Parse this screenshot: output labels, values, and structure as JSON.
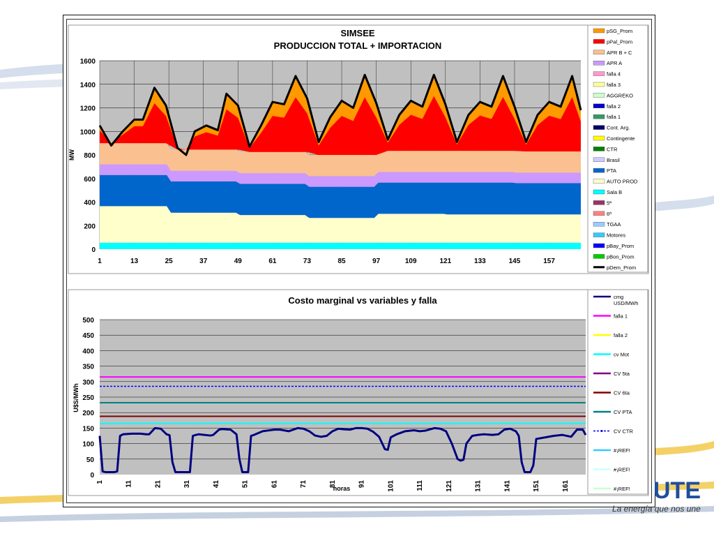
{
  "brand": {
    "tagline": "La energía que nos une"
  },
  "charts": {
    "production": {
      "title_line1": "SIMSEE",
      "title_line2": "PRODUCCION TOTAL + IMPORTACION",
      "ylabel": "MW",
      "xlabel": "",
      "y_ticks": [
        "0",
        "200",
        "400",
        "600",
        "800",
        "1000",
        "1200",
        "1400",
        "1600"
      ],
      "x_ticks": [
        "1",
        "13",
        "25",
        "37",
        "49",
        "61",
        "73",
        "85",
        "97",
        "109",
        "121",
        "133",
        "145",
        "157"
      ],
      "legend": [
        {
          "label": "pSG_Prom",
          "color": "#ff9900"
        },
        {
          "label": "pPal_Prom",
          "color": "#ff0000"
        },
        {
          "label": "APR B + C",
          "color": "#fac090"
        },
        {
          "label": "APR A",
          "color": "#cc99ff"
        },
        {
          "label": "falla 4",
          "color": "#ff99cc"
        },
        {
          "label": "falla 3",
          "color": "#ffff99"
        },
        {
          "label": "AGGREKO",
          "color": "#ccffcc"
        },
        {
          "label": "falla 2",
          "color": "#0000cc"
        },
        {
          "label": "falla 1",
          "color": "#339966"
        },
        {
          "label": "Cont. Arg.",
          "color": "#000066"
        },
        {
          "label": "Contingente",
          "color": "#ffff00"
        },
        {
          "label": "CTR",
          "color": "#008000"
        },
        {
          "label": "Brasil",
          "color": "#ccccff"
        },
        {
          "label": "PTA",
          "color": "#0066cc"
        },
        {
          "label": "AUTO PROD",
          "color": "#ffffcc"
        },
        {
          "label": "Sala B",
          "color": "#00ffff"
        },
        {
          "label": "5ª",
          "color": "#993366"
        },
        {
          "label": "6ª",
          "color": "#ff8080"
        },
        {
          "label": "TGAA",
          "color": "#99ccff"
        },
        {
          "label": "Motores",
          "color": "#33ccff"
        },
        {
          "label": "pBay_Prom",
          "color": "#0000ff"
        },
        {
          "label": "pBon_Prom",
          "color": "#00cc00"
        },
        {
          "label": "pDem_Prom",
          "color": "#000000"
        }
      ]
    },
    "marginal": {
      "title": "Costo marginal vs variables y falla",
      "ylabel": "U$S/MWh",
      "xlabel": "horas",
      "y_ticks": [
        "0",
        "50",
        "100",
        "150",
        "200",
        "250",
        "300",
        "350",
        "400",
        "450",
        "500"
      ],
      "x_ticks": [
        "1",
        "11",
        "21",
        "31",
        "41",
        "51",
        "61",
        "71",
        "81",
        "91",
        "101",
        "111",
        "121",
        "131",
        "141",
        "151",
        "161"
      ],
      "legend": [
        {
          "label": "cmg USD/MWh",
          "color": "#000080",
          "style": "line"
        },
        {
          "label": "falla 1",
          "color": "#ff00ff",
          "style": "line"
        },
        {
          "label": "falla 2",
          "color": "#ffff00",
          "style": "line"
        },
        {
          "label": "cv Mot",
          "color": "#00ffff",
          "style": "line"
        },
        {
          "label": "CV 5ta",
          "color": "#800080",
          "style": "line"
        },
        {
          "label": "CV 6ta",
          "color": "#800000",
          "style": "line"
        },
        {
          "label": "CV PTA",
          "color": "#008080",
          "style": "line"
        },
        {
          "label": "CV CTR",
          "color": "#0000ff",
          "style": "dash-marker"
        },
        {
          "label": "#¡REF!",
          "color": "#33ccff",
          "style": "line"
        },
        {
          "label": "#¡REF!",
          "color": "#ccffff",
          "style": "line"
        },
        {
          "label": "#¡REF!",
          "color": "#ccffcc",
          "style": "line"
        }
      ]
    }
  },
  "chart_data": [
    {
      "type": "area",
      "title": "SIMSEE PRODUCCION TOTAL + IMPORTACION",
      "ylabel": "MW",
      "ylim": [
        0,
        1600
      ],
      "xlim": [
        1,
        168
      ],
      "grid": true,
      "legend_position": "right",
      "x_breaks": [
        1,
        25,
        49,
        73,
        97,
        121,
        145,
        168
      ],
      "stacked_series": [
        {
          "name": "Sala B",
          "color": "#00ffff",
          "values": [
            55,
            55,
            55,
            55,
            55,
            55,
            55
          ]
        },
        {
          "name": "AUTO PROD",
          "color": "#ffffcc",
          "values": [
            310,
            255,
            235,
            210,
            245,
            240,
            240
          ]
        },
        {
          "name": "PTA",
          "color": "#0066cc",
          "values": [
            265,
            265,
            265,
            265,
            265,
            270,
            265
          ]
        },
        {
          "name": "APR A",
          "color": "#cc99ff",
          "values": [
            90,
            90,
            90,
            90,
            90,
            90,
            90
          ]
        },
        {
          "name": "APR B + C",
          "color": "#fac090",
          "values": [
            180,
            180,
            180,
            180,
            180,
            180,
            180
          ]
        }
      ],
      "series": [
        {
          "name": "pDem_Prom",
          "color": "#000000",
          "x": [
            1,
            5,
            9,
            13,
            16,
            20,
            24,
            28,
            31,
            34,
            38,
            42,
            45,
            49,
            53,
            57,
            61,
            65,
            69,
            73,
            77,
            81,
            85,
            89,
            93,
            97,
            101,
            105,
            109,
            113,
            117,
            121,
            125,
            129,
            133,
            137,
            141,
            145,
            149,
            153,
            157,
            161,
            165,
            168
          ],
          "values": [
            1050,
            880,
            1000,
            1100,
            1100,
            1370,
            1220,
            860,
            800,
            1000,
            1050,
            1010,
            1320,
            1220,
            870,
            1050,
            1250,
            1230,
            1470,
            1280,
            910,
            1120,
            1260,
            1200,
            1480,
            1240,
            930,
            1140,
            1260,
            1210,
            1480,
            1230,
            910,
            1140,
            1250,
            1210,
            1470,
            1210,
            910,
            1140,
            1250,
            1210,
            1470,
            1180
          ]
        },
        {
          "name": "pSG_Prom",
          "color": "#ff9900",
          "description_only": false,
          "values": []
        },
        {
          "name": "pPal_Prom",
          "color": "#ff0000",
          "values": []
        }
      ]
    },
    {
      "type": "line",
      "title": "Costo marginal vs variables y falla",
      "xlabel": "horas",
      "ylabel": "U$S/MWh",
      "ylim": [
        0,
        500
      ],
      "xlim": [
        1,
        168
      ],
      "grid": true,
      "legend_position": "right",
      "series": [
        {
          "name": "cmg USD/MWh",
          "color": "#000080",
          "x": [
            1,
            2,
            3,
            6,
            7,
            8,
            9,
            12,
            15,
            17,
            18,
            20,
            22,
            24,
            25,
            26,
            27,
            29,
            32,
            33,
            34,
            35,
            39,
            40,
            42,
            43,
            46,
            48,
            49,
            50,
            51,
            52,
            53,
            54,
            57,
            61,
            63,
            66,
            69,
            71,
            73,
            75,
            77,
            79,
            81,
            83,
            85,
            87,
            89,
            91,
            93,
            95,
            97,
            99,
            100,
            101,
            102,
            103,
            106,
            109,
            111,
            113,
            116,
            118,
            120,
            122,
            124,
            125,
            126,
            127,
            129,
            131,
            133,
            136,
            138,
            140,
            142,
            144,
            145,
            146,
            147,
            148,
            149,
            150,
            151,
            154,
            157,
            160,
            163,
            165,
            167,
            168
          ],
          "values": [
            125,
            10,
            8,
            8,
            10,
            125,
            130,
            132,
            132,
            130,
            130,
            150,
            148,
            130,
            127,
            40,
            8,
            8,
            8,
            125,
            128,
            130,
            126,
            128,
            145,
            147,
            145,
            130,
            50,
            8,
            8,
            8,
            125,
            128,
            140,
            145,
            145,
            140,
            150,
            148,
            140,
            126,
            122,
            125,
            140,
            148,
            146,
            145,
            150,
            150,
            148,
            138,
            122,
            82,
            80,
            120,
            125,
            130,
            140,
            143,
            140,
            142,
            150,
            148,
            140,
            100,
            50,
            45,
            48,
            100,
            125,
            128,
            130,
            128,
            130,
            145,
            148,
            140,
            125,
            40,
            8,
            8,
            8,
            30,
            115,
            120,
            125,
            128,
            122,
            145,
            145,
            128
          ]
        },
        {
          "name": "falla 1",
          "color": "#ff00ff",
          "values": [
            315
          ]
        },
        {
          "name": "CV CTR",
          "color": "#0000ff",
          "values": [
            285
          ]
        },
        {
          "name": "CV PTA",
          "color": "#008080",
          "values": [
            232
          ]
        },
        {
          "name": "CV 6ta",
          "color": "#800000",
          "values": [
            188
          ]
        },
        {
          "name": "cv Mot",
          "color": "#00ffff",
          "values": [
            165
          ]
        }
      ]
    }
  ]
}
